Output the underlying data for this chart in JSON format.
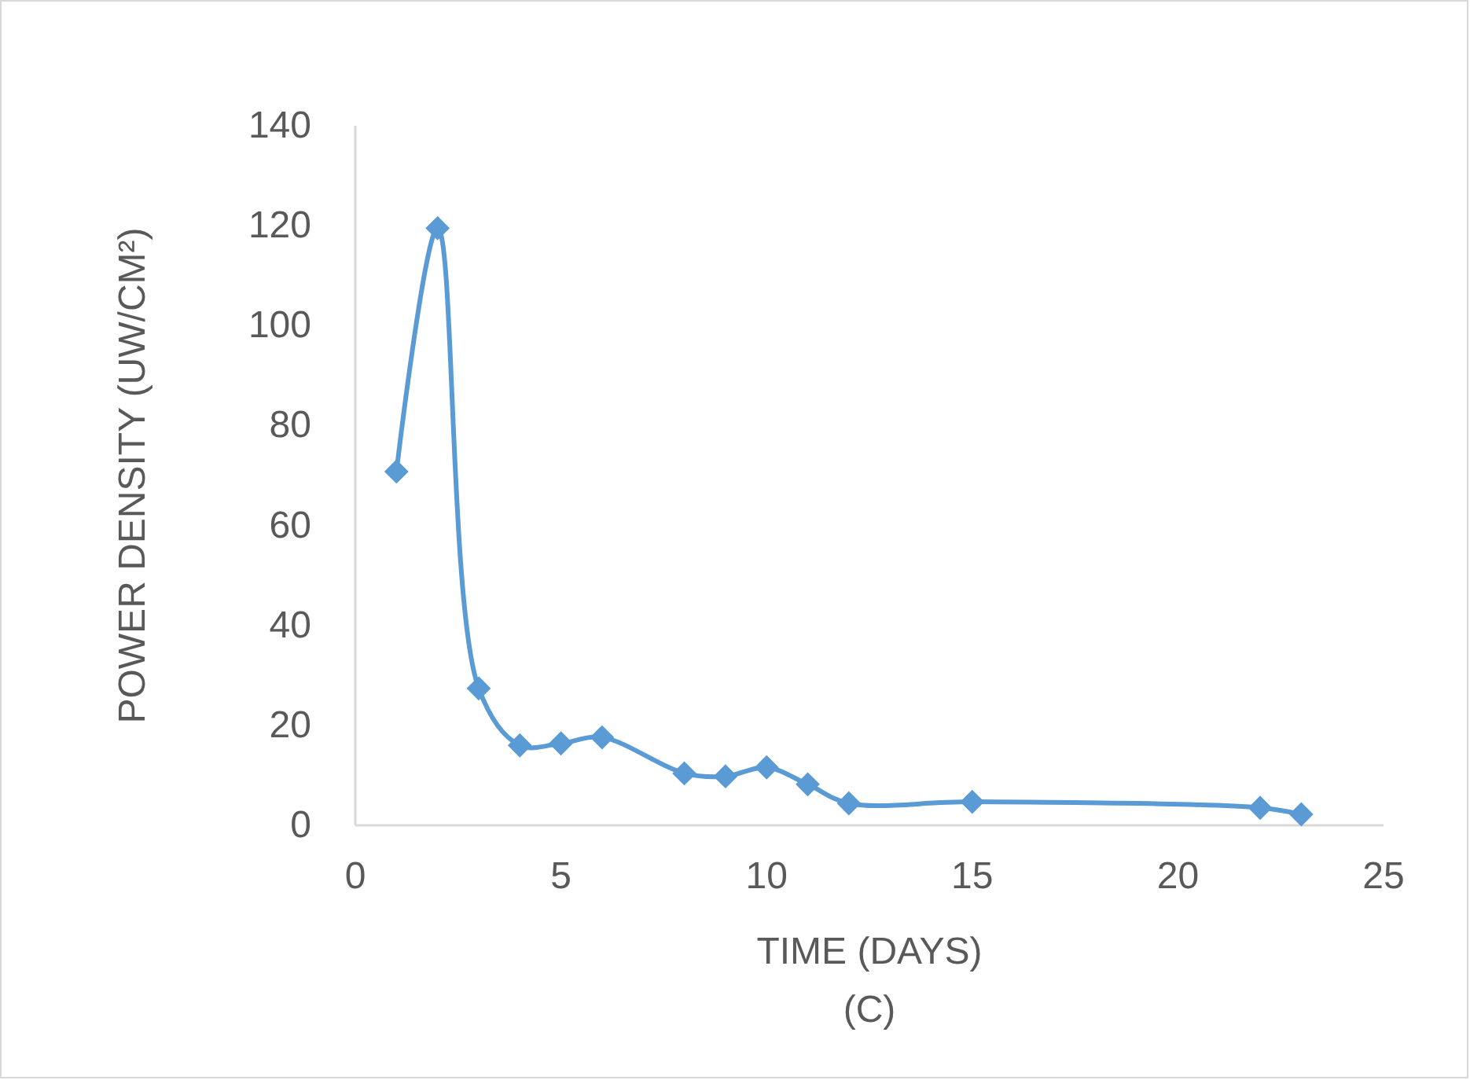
{
  "chart_data": {
    "type": "line",
    "xlabel": "TIME (DAYS)",
    "ylabel": "POWER DENSITY (UW/CM²)",
    "annotations": [
      "(C)"
    ],
    "x": [
      1,
      2,
      3,
      4,
      5,
      6,
      8,
      9,
      10,
      11,
      12,
      15,
      22,
      23
    ],
    "series": [
      {
        "color": "#5b9bd5",
        "values": [
          70.8,
          119.5,
          27.4,
          16,
          16.4,
          17.6,
          10.4,
          9.8,
          11.6,
          8.2,
          4.4,
          4.7,
          3.5,
          2.2
        ]
      }
    ],
    "xlim": [
      0,
      25
    ],
    "xticks": [
      0,
      5,
      10,
      15,
      20,
      25
    ],
    "ylim": [
      0,
      140
    ],
    "yticks": [
      0,
      20,
      40,
      60,
      80,
      100,
      120,
      140
    ],
    "grid": false,
    "marker": "diamond",
    "line_style": "solid"
  }
}
